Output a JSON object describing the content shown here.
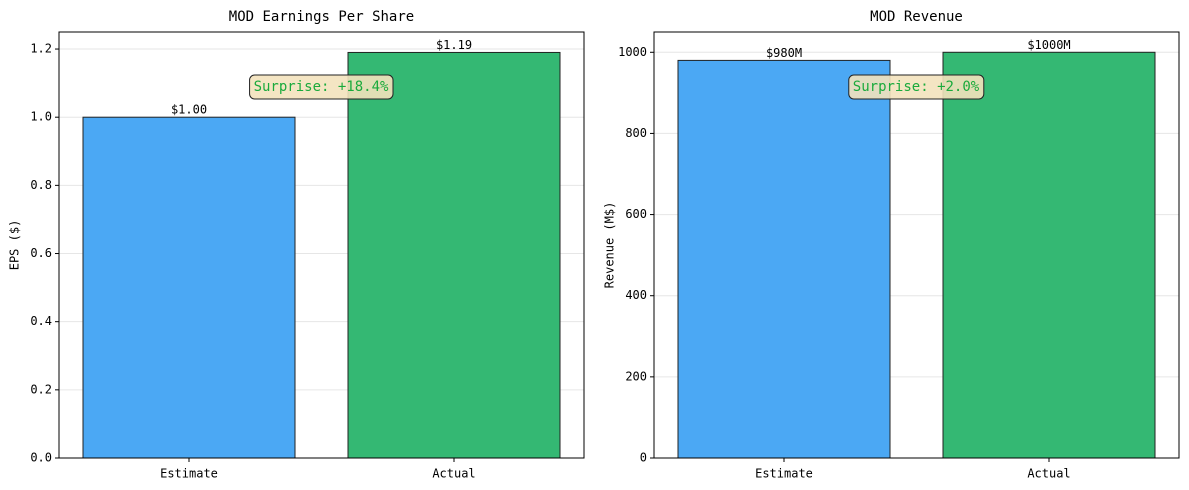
{
  "chart_data": [
    {
      "type": "bar",
      "title": "MOD Earnings Per Share",
      "ylabel": "EPS ($)",
      "categories": [
        "Estimate",
        "Actual"
      ],
      "values": [
        1.0,
        1.19
      ],
      "value_labels": [
        "$1.00",
        "$1.19"
      ],
      "colors": [
        "#4ba8f4",
        "#34b873"
      ],
      "annotation": "Surprise: +18.4%",
      "ylim": [
        0,
        1.25
      ],
      "yticks": [
        {
          "value": 0,
          "label": "0.0"
        },
        0.2,
        0.4,
        0.6,
        0.8,
        {
          "value": 1,
          "label": "1.0"
        },
        1.2
      ],
      "grid": true
    },
    {
      "type": "bar",
      "title": "MOD Revenue",
      "ylabel": "Revenue (M$)",
      "categories": [
        "Estimate",
        "Actual"
      ],
      "values": [
        980,
        1000
      ],
      "value_labels": [
        "$980M",
        "$1000M"
      ],
      "colors": [
        "#4ba8f4",
        "#34b873"
      ],
      "annotation": "Surprise: +2.0%",
      "ylim": [
        0,
        1050
      ],
      "yticks": [
        0,
        200,
        400,
        600,
        800,
        1000
      ],
      "grid": true
    }
  ]
}
